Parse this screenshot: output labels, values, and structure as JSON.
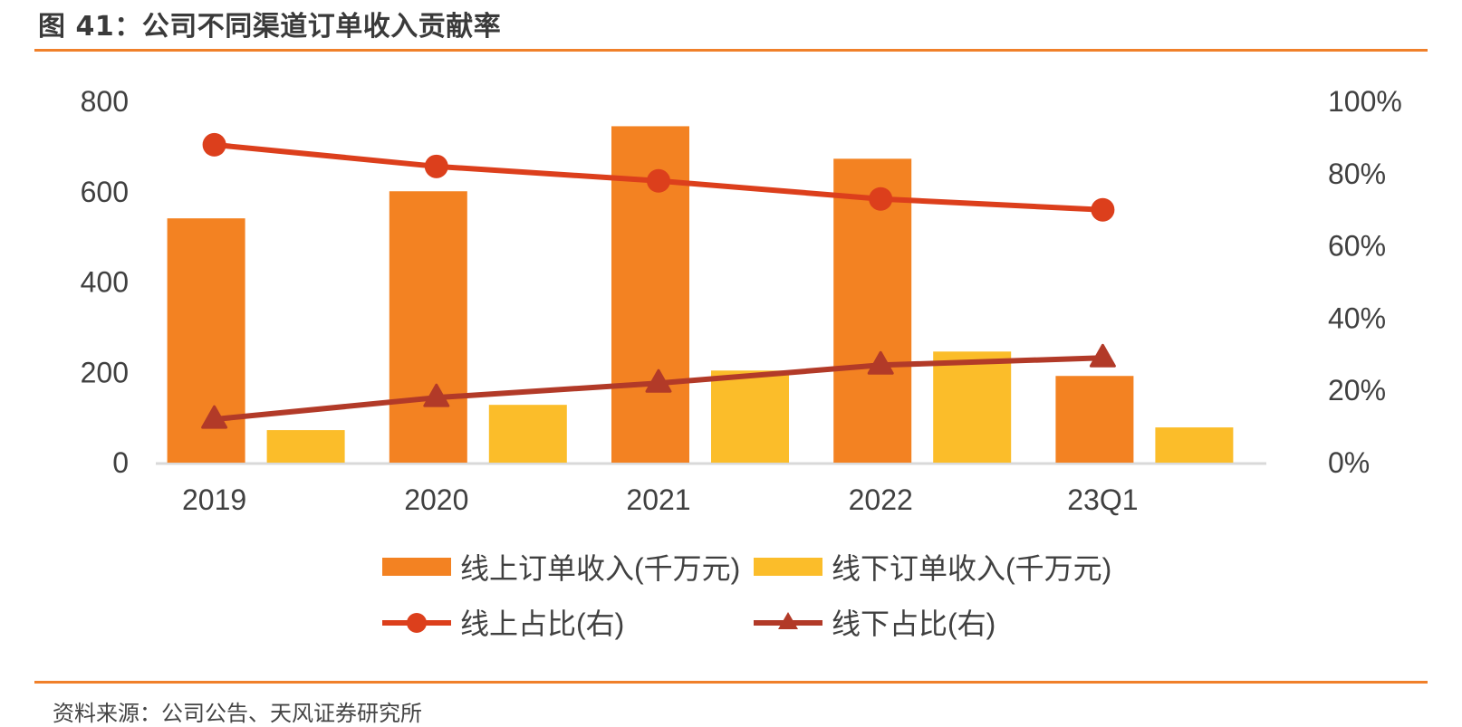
{
  "header": {
    "title": "图 41：公司不同渠道订单收入贡献率"
  },
  "footer": {
    "source": "资料来源：公司公告、天风证券研究所"
  },
  "colors": {
    "online_bar": "#f38222",
    "offline_bar": "#fbbd2a",
    "online_line": "#dc3f1c",
    "offline_line": "#b23a28",
    "rule": "#f0802a",
    "axis": "#d9d9d9",
    "text": "#404040"
  },
  "chart_data": {
    "type": "bar",
    "title": "",
    "categories": [
      "2019",
      "2020",
      "2021",
      "2022",
      "23Q1"
    ],
    "xlabel": "",
    "ylabel": "",
    "ylim": [
      0,
      800
    ],
    "y_ticks": [
      "0",
      "200",
      "400",
      "600",
      "800"
    ],
    "y2lim": [
      0,
      100
    ],
    "y2_ticks": [
      "0%",
      "20%",
      "40%",
      "60%",
      "80%",
      "100%"
    ],
    "grid": false,
    "legend_position": "bottom",
    "series": [
      {
        "name": "线上订单收入(千万元)",
        "type": "bar",
        "axis": "left",
        "values": [
          541,
          601,
          745,
          673,
          192
        ]
      },
      {
        "name": "线下订单收入(千万元)",
        "type": "bar",
        "axis": "left",
        "values": [
          72,
          128,
          204,
          246,
          78
        ]
      },
      {
        "name": "线上占比(右)",
        "type": "line",
        "marker": "circle",
        "axis": "right",
        "values": [
          88,
          82,
          78,
          73,
          70
        ]
      },
      {
        "name": "线下占比(右)",
        "type": "line",
        "marker": "triangle",
        "axis": "right",
        "values": [
          12,
          18,
          22,
          27,
          29
        ]
      }
    ]
  }
}
